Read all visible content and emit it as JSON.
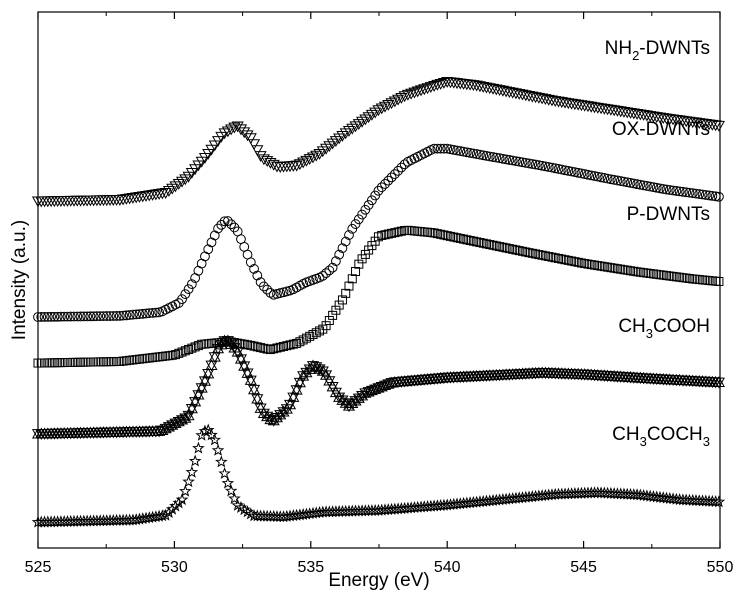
{
  "chart_data": {
    "type": "line",
    "xlabel": "Energy (eV)",
    "ylabel": "Intensity (a.u.)",
    "xlim": [
      525,
      550
    ],
    "xticks": [
      "525",
      "530",
      "535",
      "540",
      "545",
      "550"
    ],
    "y_tick_labels_shown": false,
    "grid": false,
    "legend": "none (series labeled inline at right)",
    "y_units": "arbitrary (vertically offset spectra)",
    "series": [
      {
        "name": "NH2-DWNTs",
        "label_main": "NH",
        "label_sub": "2",
        "label_rest": "-DWNTs",
        "marker": "triangle-down",
        "x_start": 525,
        "x_end": 550,
        "points": [
          [
            525.0,
            0.647
          ],
          [
            528.0,
            0.65
          ],
          [
            529.7,
            0.663
          ],
          [
            530.5,
            0.692
          ],
          [
            531.2,
            0.733
          ],
          [
            531.8,
            0.773
          ],
          [
            532.3,
            0.788
          ],
          [
            532.8,
            0.765
          ],
          [
            533.2,
            0.728
          ],
          [
            533.8,
            0.711
          ],
          [
            534.5,
            0.714
          ],
          [
            535.3,
            0.735
          ],
          [
            536.3,
            0.775
          ],
          [
            537.5,
            0.818
          ],
          [
            538.5,
            0.845
          ],
          [
            539.6,
            0.864
          ],
          [
            540.0,
            0.87
          ],
          [
            541.0,
            0.864
          ],
          [
            542.5,
            0.849
          ],
          [
            544.0,
            0.834
          ],
          [
            546.0,
            0.818
          ],
          [
            548.0,
            0.802
          ],
          [
            550.0,
            0.788
          ]
        ]
      },
      {
        "name": "OX-DWNTs",
        "label_main": "OX-DWNTs",
        "label_sub": "",
        "label_rest": "",
        "marker": "circle",
        "x_start": 525,
        "x_end": 550,
        "points": [
          [
            525.0,
            0.431
          ],
          [
            528.0,
            0.433
          ],
          [
            529.5,
            0.44
          ],
          [
            530.2,
            0.458
          ],
          [
            530.7,
            0.497
          ],
          [
            531.2,
            0.553
          ],
          [
            531.6,
            0.596
          ],
          [
            531.9,
            0.613
          ],
          [
            532.3,
            0.593
          ],
          [
            532.8,
            0.533
          ],
          [
            533.2,
            0.492
          ],
          [
            533.6,
            0.472
          ],
          [
            534.3,
            0.481
          ],
          [
            534.8,
            0.495
          ],
          [
            535.4,
            0.506
          ],
          [
            535.8,
            0.523
          ],
          [
            536.5,
            0.594
          ],
          [
            537.5,
            0.668
          ],
          [
            538.5,
            0.719
          ],
          [
            539.5,
            0.745
          ],
          [
            540.0,
            0.745
          ],
          [
            541.5,
            0.731
          ],
          [
            543.5,
            0.713
          ],
          [
            546.0,
            0.688
          ],
          [
            548.0,
            0.669
          ],
          [
            550.0,
            0.655
          ]
        ]
      },
      {
        "name": "P-DWNTs",
        "label_main": "P-DWNTs",
        "label_sub": "",
        "label_rest": "",
        "marker": "square",
        "x_start": 525,
        "x_end": 550,
        "points": [
          [
            525.0,
            0.345
          ],
          [
            528.0,
            0.348
          ],
          [
            530.0,
            0.36
          ],
          [
            531.0,
            0.38
          ],
          [
            532.0,
            0.385
          ],
          [
            532.8,
            0.378
          ],
          [
            533.5,
            0.37
          ],
          [
            534.5,
            0.382
          ],
          [
            535.5,
            0.41
          ],
          [
            536.2,
            0.466
          ],
          [
            536.8,
            0.534
          ],
          [
            537.5,
            0.582
          ],
          [
            538.5,
            0.593
          ],
          [
            539.5,
            0.588
          ],
          [
            541.0,
            0.572
          ],
          [
            543.0,
            0.551
          ],
          [
            545.0,
            0.531
          ],
          [
            547.0,
            0.515
          ],
          [
            549.0,
            0.502
          ],
          [
            550.0,
            0.497
          ]
        ]
      },
      {
        "name": "CH3COOH",
        "label_main": "CH",
        "label_sub": "3",
        "label_rest": "COOH",
        "marker": "triangle-down-crossed",
        "x_start": 525,
        "x_end": 550,
        "points": [
          [
            525.0,
            0.213
          ],
          [
            529.5,
            0.218
          ],
          [
            530.5,
            0.245
          ],
          [
            531.2,
            0.32
          ],
          [
            531.6,
            0.372
          ],
          [
            531.9,
            0.39
          ],
          [
            532.3,
            0.368
          ],
          [
            532.8,
            0.313
          ],
          [
            533.2,
            0.255
          ],
          [
            533.6,
            0.236
          ],
          [
            534.2,
            0.263
          ],
          [
            534.7,
            0.32
          ],
          [
            535.1,
            0.341
          ],
          [
            535.5,
            0.328
          ],
          [
            536.0,
            0.283
          ],
          [
            536.4,
            0.265
          ],
          [
            537.0,
            0.289
          ],
          [
            538.0,
            0.309
          ],
          [
            540.0,
            0.318
          ],
          [
            542.0,
            0.323
          ],
          [
            543.5,
            0.327
          ],
          [
            545.0,
            0.324
          ],
          [
            547.5,
            0.316
          ],
          [
            550.0,
            0.309
          ]
        ]
      },
      {
        "name": "CH3COCH3",
        "label_main": "CH",
        "label_sub": "3",
        "label_rest": "COCH",
        "label_sub2": "3",
        "marker": "star",
        "x_start": 525,
        "x_end": 550,
        "points": [
          [
            525.0,
            0.048
          ],
          [
            528.5,
            0.052
          ],
          [
            529.7,
            0.061
          ],
          [
            530.3,
            0.091
          ],
          [
            530.7,
            0.15
          ],
          [
            531.0,
            0.21
          ],
          [
            531.2,
            0.223
          ],
          [
            531.5,
            0.2
          ],
          [
            531.9,
            0.128
          ],
          [
            532.3,
            0.08
          ],
          [
            532.9,
            0.06
          ],
          [
            534.0,
            0.058
          ],
          [
            535.5,
            0.067
          ],
          [
            537.5,
            0.07
          ],
          [
            540.0,
            0.08
          ],
          [
            542.0,
            0.09
          ],
          [
            544.0,
            0.1
          ],
          [
            545.5,
            0.103
          ],
          [
            547.0,
            0.099
          ],
          [
            548.5,
            0.09
          ],
          [
            550.0,
            0.086
          ]
        ]
      }
    ]
  }
}
